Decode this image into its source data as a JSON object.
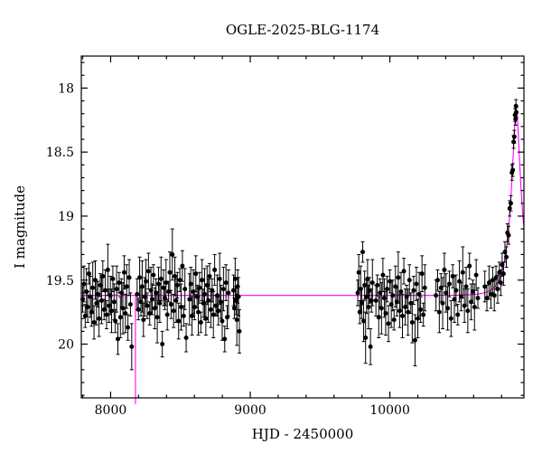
{
  "chart_data": {
    "type": "scatter",
    "title": "OGLE-2025-BLG-1174",
    "xlabel": "HJD - 2450000",
    "ylabel": "I magnitude",
    "xlim": [
      7790,
      10960
    ],
    "ylim": [
      17.75,
      20.42
    ],
    "y_axis_inverted": true,
    "xticks": {
      "major": [
        8000,
        9000,
        10000
      ],
      "labels": [
        "8000",
        "9000",
        "10000"
      ],
      "minor_step": 200
    },
    "yticks": {
      "major": [
        18,
        18.5,
        19,
        19.5,
        20
      ],
      "labels": [
        "18",
        "18.5",
        "19",
        "19.5",
        "20"
      ],
      "minor_step": 0.1
    },
    "colors": {
      "data": "#000000",
      "model": "#ff00ff",
      "frame": "#000000",
      "background": "#ffffff"
    },
    "model": {
      "type": "microlensing_pspl",
      "baseline_mag": 19.62,
      "t0": 10905,
      "tE": 80,
      "u0": 0.27,
      "seam_x": 8178
    },
    "points_format": [
      "hjd_minus_2450000",
      "i_mag",
      "err_mag"
    ],
    "points": [
      [
        7800,
        19.65,
        0.1
      ],
      [
        7809,
        19.53,
        0.14
      ],
      [
        7818,
        19.78,
        0.09
      ],
      [
        7827,
        19.59,
        0.18
      ],
      [
        7836,
        19.71,
        0.12
      ],
      [
        7845,
        19.45,
        0.08
      ],
      [
        7854,
        19.63,
        0.16
      ],
      [
        7863,
        19.75,
        0.11
      ],
      [
        7872,
        19.56,
        0.2
      ],
      [
        7881,
        19.83,
        0.13
      ],
      [
        7890,
        19.5,
        0.15
      ],
      [
        7899,
        19.68,
        0.17
      ],
      [
        7908,
        19.61,
        0.1
      ],
      [
        7917,
        19.8,
        0.14
      ],
      [
        7926,
        19.54,
        0.09
      ],
      [
        7935,
        19.66,
        0.18
      ],
      [
        7944,
        19.47,
        0.12
      ],
      [
        7953,
        19.73,
        0.08
      ],
      [
        7962,
        19.58,
        0.16
      ],
      [
        7971,
        19.77,
        0.11
      ],
      [
        7980,
        19.42,
        0.2
      ],
      [
        7989,
        19.7,
        0.13
      ],
      [
        7998,
        19.62,
        0.15
      ],
      [
        8007,
        19.74,
        0.17
      ],
      [
        8016,
        19.49,
        0.1
      ],
      [
        8025,
        19.67,
        0.14
      ],
      [
        8034,
        19.82,
        0.09
      ],
      [
        8043,
        19.57,
        0.18
      ],
      [
        8052,
        19.96,
        0.12
      ],
      [
        8061,
        19.52,
        0.08
      ],
      [
        8070,
        19.79,
        0.16
      ],
      [
        8079,
        19.6,
        0.11
      ],
      [
        8088,
        19.72,
        0.2
      ],
      [
        8097,
        19.44,
        0.13
      ],
      [
        8106,
        19.76,
        0.15
      ],
      [
        8115,
        19.55,
        0.17
      ],
      [
        8124,
        19.87,
        0.1
      ],
      [
        8133,
        19.48,
        0.14
      ],
      [
        8142,
        19.69,
        0.09
      ],
      [
        8151,
        20.02,
        0.18
      ],
      [
        8190,
        19.61,
        0.12
      ],
      [
        8199,
        19.73,
        0.08
      ],
      [
        8208,
        19.48,
        0.16
      ],
      [
        8217,
        19.67,
        0.11
      ],
      [
        8226,
        19.55,
        0.2
      ],
      [
        8235,
        19.81,
        0.13
      ],
      [
        8244,
        19.63,
        0.15
      ],
      [
        8253,
        19.51,
        0.17
      ],
      [
        8262,
        19.7,
        0.1
      ],
      [
        8271,
        19.43,
        0.14
      ],
      [
        8280,
        19.76,
        0.09
      ],
      [
        8289,
        19.58,
        0.18
      ],
      [
        8298,
        19.65,
        0.12
      ],
      [
        8307,
        19.46,
        0.08
      ],
      [
        8316,
        19.72,
        0.16
      ],
      [
        8325,
        19.6,
        0.11
      ],
      [
        8334,
        19.79,
        0.2
      ],
      [
        8343,
        19.53,
        0.13
      ],
      [
        8352,
        19.68,
        0.15
      ],
      [
        8361,
        19.49,
        0.17
      ],
      [
        8370,
        20.0,
        0.1
      ],
      [
        8379,
        19.56,
        0.14
      ],
      [
        8388,
        19.64,
        0.09
      ],
      [
        8397,
        19.52,
        0.18
      ],
      [
        8406,
        19.77,
        0.12
      ],
      [
        8415,
        19.59,
        0.08
      ],
      [
        8424,
        19.44,
        0.16
      ],
      [
        8433,
        19.69,
        0.11
      ],
      [
        8442,
        19.3,
        0.2
      ],
      [
        8451,
        19.74,
        0.13
      ],
      [
        8460,
        19.47,
        0.15
      ],
      [
        8469,
        19.66,
        0.17
      ],
      [
        8478,
        19.54,
        0.1
      ],
      [
        8487,
        19.82,
        0.14
      ],
      [
        8496,
        19.5,
        0.09
      ],
      [
        8505,
        19.71,
        0.18
      ],
      [
        8514,
        19.39,
        0.12
      ],
      [
        8523,
        19.78,
        0.08
      ],
      [
        8532,
        19.57,
        0.16
      ],
      [
        8541,
        19.95,
        0.11
      ],
      [
        8565,
        19.65,
        0.2
      ],
      [
        8574,
        19.53,
        0.13
      ],
      [
        8583,
        19.78,
        0.15
      ],
      [
        8592,
        19.59,
        0.17
      ],
      [
        8601,
        19.71,
        0.1
      ],
      [
        8610,
        19.45,
        0.14
      ],
      [
        8619,
        19.63,
        0.09
      ],
      [
        8628,
        19.75,
        0.18
      ],
      [
        8637,
        19.56,
        0.12
      ],
      [
        8646,
        19.83,
        0.08
      ],
      [
        8655,
        19.5,
        0.16
      ],
      [
        8664,
        19.68,
        0.11
      ],
      [
        8673,
        19.61,
        0.2
      ],
      [
        8682,
        19.8,
        0.13
      ],
      [
        8691,
        19.54,
        0.15
      ],
      [
        8700,
        19.66,
        0.17
      ],
      [
        8709,
        19.47,
        0.1
      ],
      [
        8718,
        19.73,
        0.14
      ],
      [
        8727,
        19.58,
        0.09
      ],
      [
        8736,
        19.77,
        0.18
      ],
      [
        8745,
        19.42,
        0.12
      ],
      [
        8754,
        19.7,
        0.08
      ],
      [
        8763,
        19.62,
        0.16
      ],
      [
        8772,
        19.74,
        0.11
      ],
      [
        8781,
        19.49,
        0.2
      ],
      [
        8790,
        19.67,
        0.13
      ],
      [
        8799,
        19.82,
        0.15
      ],
      [
        8808,
        19.57,
        0.17
      ],
      [
        8817,
        19.96,
        0.1
      ],
      [
        8826,
        19.52,
        0.14
      ],
      [
        8835,
        19.79,
        0.09
      ],
      [
        8844,
        19.6,
        0.18
      ],
      [
        8880,
        19.58,
        0.12
      ],
      [
        8886,
        19.72,
        0.08
      ],
      [
        8892,
        19.49,
        0.16
      ],
      [
        8898,
        19.66,
        0.11
      ],
      [
        8904,
        19.81,
        0.2
      ],
      [
        8910,
        19.55,
        0.13
      ],
      [
        8916,
        19.63,
        0.15
      ],
      [
        8922,
        19.9,
        0.17
      ],
      [
        9770,
        19.6,
        0.1
      ],
      [
        9777,
        19.44,
        0.14
      ],
      [
        9784,
        19.75,
        0.09
      ],
      [
        9791,
        19.57,
        0.18
      ],
      [
        9798,
        19.68,
        0.12
      ],
      [
        9805,
        19.28,
        0.08
      ],
      [
        9812,
        19.82,
        0.16
      ],
      [
        9819,
        19.54,
        0.11
      ],
      [
        9826,
        19.95,
        0.2
      ],
      [
        9833,
        19.63,
        0.13
      ],
      [
        9840,
        19.49,
        0.15
      ],
      [
        9847,
        19.71,
        0.17
      ],
      [
        9854,
        19.58,
        0.1
      ],
      [
        9861,
        20.02,
        0.14
      ],
      [
        9868,
        19.66,
        0.09
      ],
      [
        9875,
        19.52,
        0.18
      ],
      [
        9900,
        19.66,
        0.12
      ],
      [
        9910,
        19.54,
        0.08
      ],
      [
        9920,
        19.79,
        0.16
      ],
      [
        9930,
        19.6,
        0.11
      ],
      [
        9940,
        19.72,
        0.2
      ],
      [
        9950,
        19.46,
        0.13
      ],
      [
        9960,
        19.64,
        0.15
      ],
      [
        9970,
        19.76,
        0.17
      ],
      [
        9980,
        19.57,
        0.1
      ],
      [
        9990,
        19.84,
        0.14
      ],
      [
        10000,
        19.51,
        0.09
      ],
      [
        10010,
        19.69,
        0.18
      ],
      [
        10020,
        19.62,
        0.12
      ],
      [
        10030,
        19.81,
        0.08
      ],
      [
        10040,
        19.55,
        0.16
      ],
      [
        10050,
        19.67,
        0.11
      ],
      [
        10060,
        19.48,
        0.2
      ],
      [
        10070,
        19.74,
        0.13
      ],
      [
        10080,
        19.59,
        0.15
      ],
      [
        10090,
        19.78,
        0.17
      ],
      [
        10100,
        19.43,
        0.1
      ],
      [
        10110,
        19.71,
        0.14
      ],
      [
        10120,
        19.63,
        0.09
      ],
      [
        10130,
        19.75,
        0.18
      ],
      [
        10140,
        19.5,
        0.12
      ],
      [
        10150,
        19.68,
        0.08
      ],
      [
        10160,
        19.83,
        0.16
      ],
      [
        10170,
        19.58,
        0.11
      ],
      [
        10180,
        19.97,
        0.2
      ],
      [
        10190,
        19.53,
        0.13
      ],
      [
        10200,
        19.8,
        0.15
      ],
      [
        10210,
        19.61,
        0.17
      ],
      [
        10220,
        19.73,
        0.1
      ],
      [
        10230,
        19.45,
        0.14
      ],
      [
        10240,
        19.77,
        0.09
      ],
      [
        10250,
        19.56,
        0.18
      ],
      [
        10330,
        19.62,
        0.12
      ],
      [
        10342,
        19.5,
        0.08
      ],
      [
        10354,
        19.75,
        0.16
      ],
      [
        10366,
        19.56,
        0.11
      ],
      [
        10378,
        19.68,
        0.2
      ],
      [
        10390,
        19.42,
        0.13
      ],
      [
        10402,
        19.6,
        0.15
      ],
      [
        10414,
        19.72,
        0.17
      ],
      [
        10426,
        19.53,
        0.1
      ],
      [
        10438,
        19.8,
        0.14
      ],
      [
        10450,
        19.47,
        0.09
      ],
      [
        10462,
        19.65,
        0.18
      ],
      [
        10474,
        19.58,
        0.12
      ],
      [
        10486,
        19.77,
        0.08
      ],
      [
        10498,
        19.51,
        0.16
      ],
      [
        10510,
        19.63,
        0.11
      ],
      [
        10522,
        19.44,
        0.2
      ],
      [
        10534,
        19.7,
        0.13
      ],
      [
        10546,
        19.55,
        0.15
      ],
      [
        10558,
        19.74,
        0.17
      ],
      [
        10570,
        19.39,
        0.1
      ],
      [
        10582,
        19.67,
        0.14
      ],
      [
        10594,
        19.59,
        0.09
      ],
      [
        10606,
        19.71,
        0.18
      ],
      [
        10618,
        19.46,
        0.12
      ],
      [
        10630,
        19.64,
        0.08
      ],
      [
        10680,
        19.55,
        0.12
      ],
      [
        10695,
        19.64,
        0.1
      ],
      [
        10710,
        19.52,
        0.13
      ],
      [
        10724,
        19.61,
        0.11
      ],
      [
        10736,
        19.5,
        0.1
      ],
      [
        10748,
        19.62,
        0.12
      ],
      [
        10760,
        19.48,
        0.09
      ],
      [
        10772,
        19.57,
        0.11
      ],
      [
        10784,
        19.44,
        0.08
      ],
      [
        10794,
        19.52,
        0.1
      ],
      [
        10804,
        19.38,
        0.09
      ],
      [
        10814,
        19.45,
        0.09
      ],
      [
        10824,
        19.28,
        0.08
      ],
      [
        10834,
        19.32,
        0.08
      ],
      [
        10842,
        19.13,
        0.07
      ],
      [
        10850,
        19.15,
        0.07
      ],
      [
        10858,
        18.94,
        0.06
      ],
      [
        10866,
        18.9,
        0.06
      ],
      [
        10874,
        18.66,
        0.06
      ],
      [
        10880,
        18.64,
        0.05
      ],
      [
        10886,
        18.42,
        0.05
      ],
      [
        10891,
        18.38,
        0.05
      ],
      [
        10896,
        18.21,
        0.05
      ],
      [
        10900,
        18.24,
        0.05
      ],
      [
        10903,
        18.14,
        0.05
      ],
      [
        10906,
        18.19,
        0.04
      ]
    ]
  }
}
